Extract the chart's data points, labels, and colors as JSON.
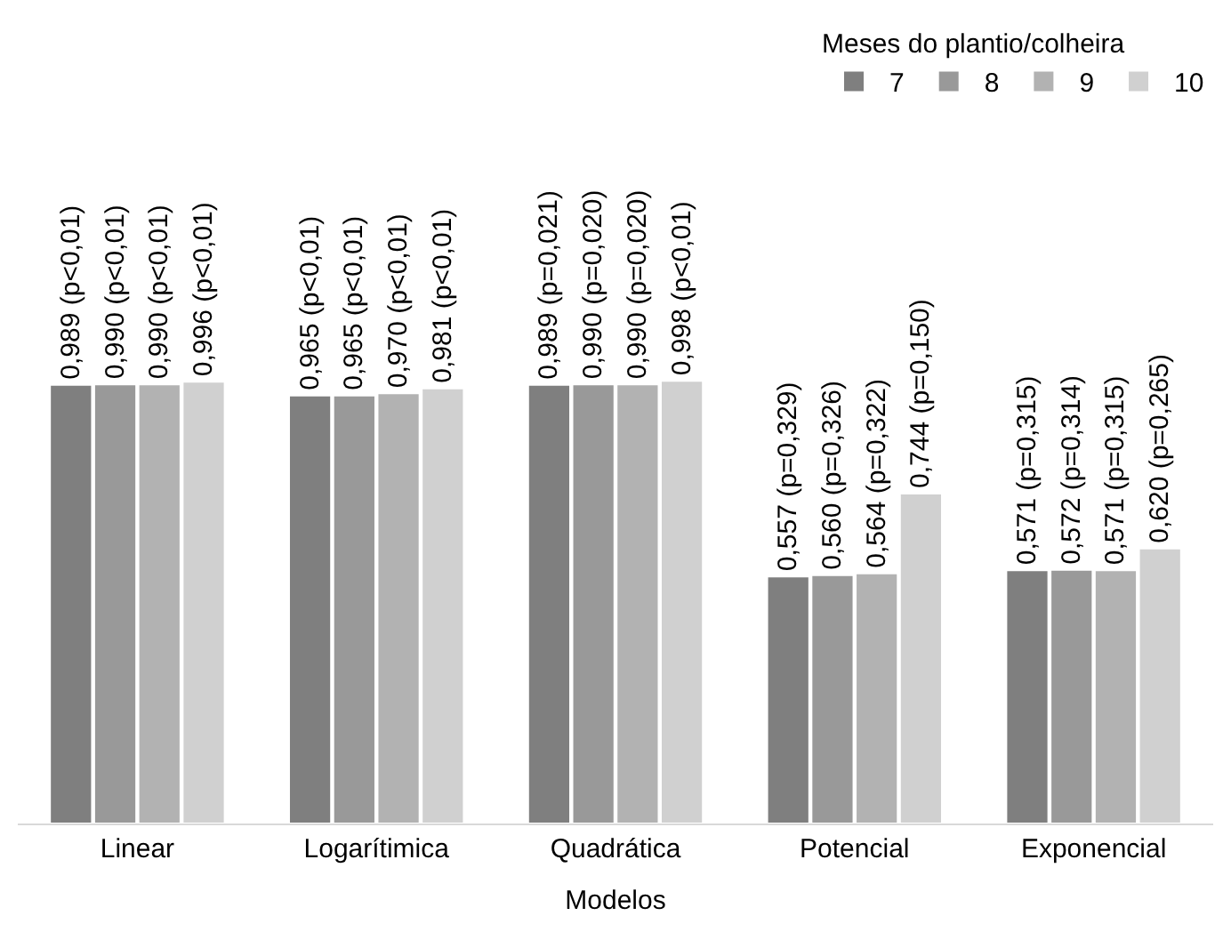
{
  "chart_data": {
    "type": "bar",
    "xlabel": "Modelos",
    "legend_title": "Meses do plantio/colheira",
    "legend": "top right",
    "categories": [
      "Linear",
      "Logarítimica",
      "Quadrática",
      "Potencial",
      "Exponencial"
    ],
    "series": [
      {
        "name": "7",
        "color": "#7f7f7f",
        "values": [
          0.989,
          0.965,
          0.989,
          0.557,
          0.571
        ],
        "value_labels": [
          "0,989 (p<0,01)",
          "0,965 (p<0,01)",
          "0,989 (p=0,021)",
          "0,557 (p=0,329)",
          "0,571 (p=0,315)"
        ]
      },
      {
        "name": "8",
        "color": "#999999",
        "values": [
          0.99,
          0.965,
          0.99,
          0.56,
          0.572
        ],
        "value_labels": [
          "0,990 (p<0,01)",
          "0,965 (p<0,01)",
          "0,990 (p=0,020)",
          "0,560 (p=0,326)",
          "0,572 (p=0,314)"
        ]
      },
      {
        "name": "9",
        "color": "#b2b2b2",
        "values": [
          0.99,
          0.97,
          0.99,
          0.564,
          0.571
        ],
        "value_labels": [
          "0,990 (p<0,01)",
          "0,970 (p<0,01)",
          "0,990 (p=0,020)",
          "0,564 (p=0,322)",
          "0,571 (p=0,315)"
        ]
      },
      {
        "name": "10",
        "color": "#d0d0d0",
        "values": [
          0.996,
          0.981,
          0.998,
          0.744,
          0.62
        ],
        "value_labels": [
          "0,996 (p<0,01)",
          "0,981 (p<0,01)",
          "0,998 (p<0,01)",
          "0,744 (p=0,150)",
          "0,620 (p=0,265)"
        ]
      }
    ]
  }
}
